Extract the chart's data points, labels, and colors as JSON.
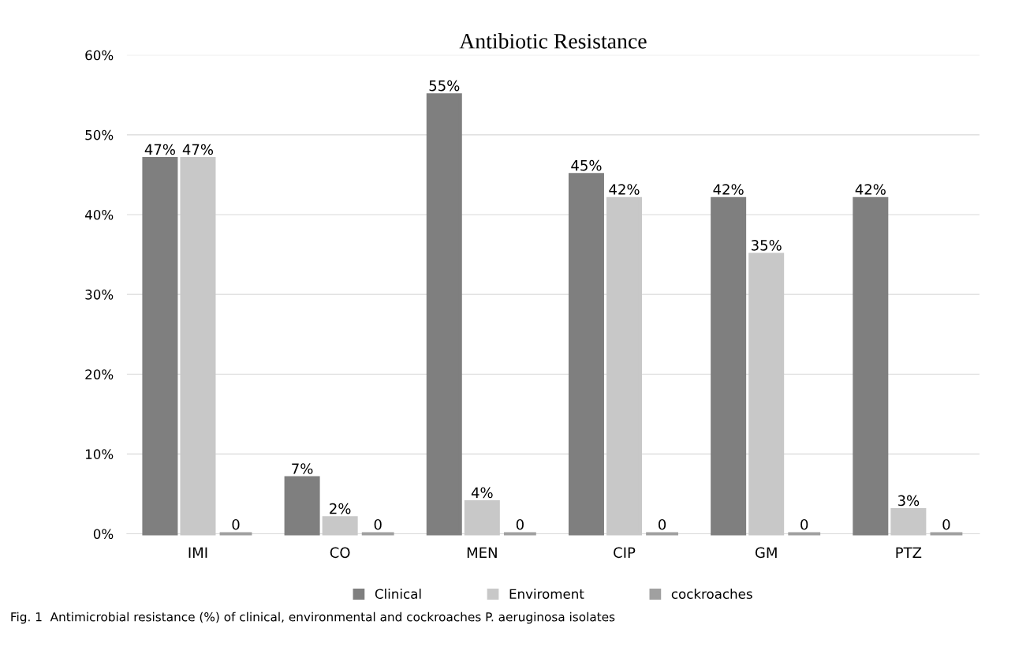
{
  "chart_data": {
    "type": "bar",
    "title": "Antibiotic Resistance",
    "categories": [
      "IMI",
      "CO",
      "MEN",
      "CIP",
      "GM",
      "PTZ"
    ],
    "series": [
      {
        "name": "Clinical",
        "color": "#7f7f7f",
        "values": [
          47,
          7,
          55,
          45,
          42,
          42
        ],
        "value_labels": [
          "47%",
          "7%",
          "55%",
          "45%",
          "42%",
          "42%"
        ]
      },
      {
        "name": "Enviroment",
        "color": "#c8c8c8",
        "values": [
          47,
          2,
          4,
          42,
          35,
          3
        ],
        "value_labels": [
          "47%",
          "2%",
          "4%",
          "42%",
          "35%",
          "3%"
        ]
      },
      {
        "name": "cockroaches",
        "color": "#a0a0a0",
        "values": [
          0,
          0,
          0,
          0,
          0,
          0
        ],
        "value_labels": [
          "0",
          "0",
          "0",
          "0",
          "0",
          "0"
        ]
      }
    ],
    "ylim": [
      0,
      60
    ],
    "yticks": [
      {
        "value": 0,
        "label": "0%"
      },
      {
        "value": 10,
        "label": "10%"
      },
      {
        "value": 20,
        "label": "20%"
      },
      {
        "value": 30,
        "label": "30%"
      },
      {
        "value": 40,
        "label": "40%"
      },
      {
        "value": 50,
        "label": "50%"
      },
      {
        "value": 60,
        "label": "60%"
      }
    ],
    "grid": "y",
    "legend": "bottom",
    "annotations": [
      "Fig. 1  Antimicrobial resistance (%) of clinical, environmental and cockroaches P. aeruginosa isolates"
    ]
  }
}
